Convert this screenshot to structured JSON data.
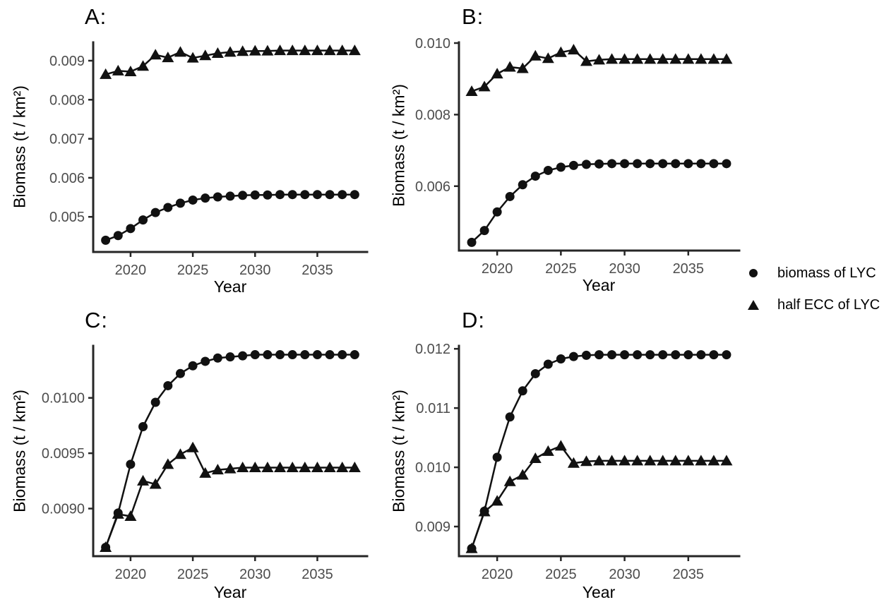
{
  "figure": {
    "background": "#ffffff",
    "axis_color": "#262626",
    "line_color": "#111111",
    "tick_label_color": "#4d4d4d",
    "title_color": "#000000"
  },
  "legend": {
    "position": "right",
    "items": [
      {
        "label": "biomass of LYC",
        "marker": "circle"
      },
      {
        "label": "half ECC of LYC",
        "marker": "triangle"
      }
    ]
  },
  "chart_data": [
    {
      "id": "A",
      "type": "line",
      "title": "A:",
      "xlabel": "Year",
      "ylabel": "Biomass (t / km²)",
      "x": [
        2018,
        2019,
        2020,
        2021,
        2022,
        2023,
        2024,
        2025,
        2026,
        2027,
        2028,
        2029,
        2030,
        2031,
        2032,
        2033,
        2034,
        2035,
        2036,
        2037,
        2038
      ],
      "xlim": [
        2017,
        2039
      ],
      "xticks": [
        2020,
        2025,
        2030,
        2035
      ],
      "ylim": [
        0.0041,
        0.00947
      ],
      "yticks": [
        0.005,
        0.006,
        0.007,
        0.008,
        0.009
      ],
      "ytick_labels": [
        "0.005",
        "0.006",
        "0.007",
        "0.008",
        "0.009"
      ],
      "grid": false,
      "series": [
        {
          "name": "biomass of LYC",
          "marker": "circle",
          "values": [
            0.0044,
            0.00452,
            0.0047,
            0.00492,
            0.00511,
            0.00524,
            0.00535,
            0.00543,
            0.00548,
            0.00551,
            0.00553,
            0.00555,
            0.00556,
            0.00556,
            0.00557,
            0.00557,
            0.00557,
            0.00557,
            0.00557,
            0.00557,
            0.00557
          ]
        },
        {
          "name": "half ECC of LYC",
          "marker": "triangle",
          "values": [
            0.00865,
            0.00874,
            0.00872,
            0.00886,
            0.00915,
            0.00908,
            0.00922,
            0.00907,
            0.00913,
            0.00919,
            0.00922,
            0.00924,
            0.00925,
            0.00925,
            0.00926,
            0.00926,
            0.00926,
            0.00926,
            0.00926,
            0.00926,
            0.00926
          ]
        }
      ]
    },
    {
      "id": "B",
      "type": "line",
      "title": "B:",
      "xlabel": "Year",
      "ylabel": "Biomass (t / km²)",
      "x": [
        2018,
        2019,
        2020,
        2021,
        2022,
        2023,
        2024,
        2025,
        2026,
        2027,
        2028,
        2029,
        2030,
        2031,
        2032,
        2033,
        2034,
        2035,
        2036,
        2037,
        2038
      ],
      "xlim": [
        2017,
        2039
      ],
      "xticks": [
        2020,
        2025,
        2030,
        2035
      ],
      "ylim": [
        0.0042,
        0.01002
      ],
      "yticks": [
        0.006,
        0.008,
        0.01
      ],
      "ytick_labels": [
        "0.006",
        "0.008",
        "0.010"
      ],
      "grid": false,
      "series": [
        {
          "name": "biomass of LYC",
          "marker": "circle",
          "values": [
            0.00443,
            0.00476,
            0.00528,
            0.00571,
            0.00604,
            0.00628,
            0.00644,
            0.00653,
            0.00658,
            0.00661,
            0.00662,
            0.00663,
            0.00663,
            0.00663,
            0.00663,
            0.00663,
            0.00663,
            0.00663,
            0.00663,
            0.00663,
            0.00663
          ]
        },
        {
          "name": "half ECC of LYC",
          "marker": "triangle",
          "values": [
            0.00865,
            0.00878,
            0.00914,
            0.00933,
            0.00929,
            0.00964,
            0.00957,
            0.00974,
            0.00981,
            0.00949,
            0.00953,
            0.00955,
            0.00955,
            0.00955,
            0.00955,
            0.00955,
            0.00955,
            0.00955,
            0.00955,
            0.00955,
            0.00955
          ]
        }
      ]
    },
    {
      "id": "C",
      "type": "line",
      "title": "C:",
      "xlabel": "Year",
      "ylabel": "Biomass (t / km²)",
      "x": [
        2018,
        2019,
        2020,
        2021,
        2022,
        2023,
        2024,
        2025,
        2026,
        2027,
        2028,
        2029,
        2030,
        2031,
        2032,
        2033,
        2034,
        2035,
        2036,
        2037,
        2038
      ],
      "xlim": [
        2017,
        2039
      ],
      "xticks": [
        2020,
        2025,
        2030,
        2035
      ],
      "ylim": [
        0.00857,
        0.01047
      ],
      "yticks": [
        0.009,
        0.0095,
        0.01
      ],
      "ytick_labels": [
        "0.0090",
        "0.0095",
        "0.0100"
      ],
      "grid": false,
      "series": [
        {
          "name": "biomass of LYC",
          "marker": "circle",
          "values": [
            0.00865,
            0.00896,
            0.0094,
            0.00974,
            0.00996,
            0.01011,
            0.01022,
            0.01029,
            0.01033,
            0.01036,
            0.01037,
            0.01038,
            0.01039,
            0.01039,
            0.01039,
            0.01039,
            0.01039,
            0.01039,
            0.01039,
            0.01039,
            0.01039
          ]
        },
        {
          "name": "half ECC of LYC",
          "marker": "triangle",
          "values": [
            0.00865,
            0.00895,
            0.00893,
            0.00925,
            0.00922,
            0.0094,
            0.00949,
            0.00955,
            0.00932,
            0.00935,
            0.00936,
            0.00937,
            0.00937,
            0.00937,
            0.00937,
            0.00937,
            0.00937,
            0.00937,
            0.00937,
            0.00937,
            0.00937
          ]
        }
      ]
    },
    {
      "id": "D",
      "type": "line",
      "title": "D:",
      "xlabel": "Year",
      "ylabel": "Biomass (t / km²)",
      "x": [
        2018,
        2019,
        2020,
        2021,
        2022,
        2023,
        2024,
        2025,
        2026,
        2027,
        2028,
        2029,
        2030,
        2031,
        2032,
        2033,
        2034,
        2035,
        2036,
        2037,
        2038
      ],
      "xlim": [
        2017,
        2039
      ],
      "xticks": [
        2020,
        2025,
        2030,
        2035
      ],
      "ylim": [
        0.0085,
        0.01205
      ],
      "yticks": [
        0.009,
        0.01,
        0.011,
        0.012
      ],
      "ytick_labels": [
        "0.009",
        "0.010",
        "0.011",
        "0.012"
      ],
      "grid": false,
      "series": [
        {
          "name": "biomass of LYC",
          "marker": "circle",
          "values": [
            0.00863,
            0.00926,
            0.01017,
            0.01085,
            0.01129,
            0.01158,
            0.01174,
            0.01183,
            0.01187,
            0.01189,
            0.0119,
            0.0119,
            0.0119,
            0.0119,
            0.0119,
            0.0119,
            0.0119,
            0.0119,
            0.0119,
            0.0119,
            0.0119
          ]
        },
        {
          "name": "half ECC of LYC",
          "marker": "triangle",
          "values": [
            0.00863,
            0.00925,
            0.00943,
            0.00976,
            0.00987,
            0.01015,
            0.01027,
            0.01036,
            0.01007,
            0.0101,
            0.01011,
            0.01011,
            0.01011,
            0.01011,
            0.01011,
            0.01011,
            0.01011,
            0.01011,
            0.01011,
            0.01011,
            0.01011
          ]
        }
      ]
    }
  ]
}
